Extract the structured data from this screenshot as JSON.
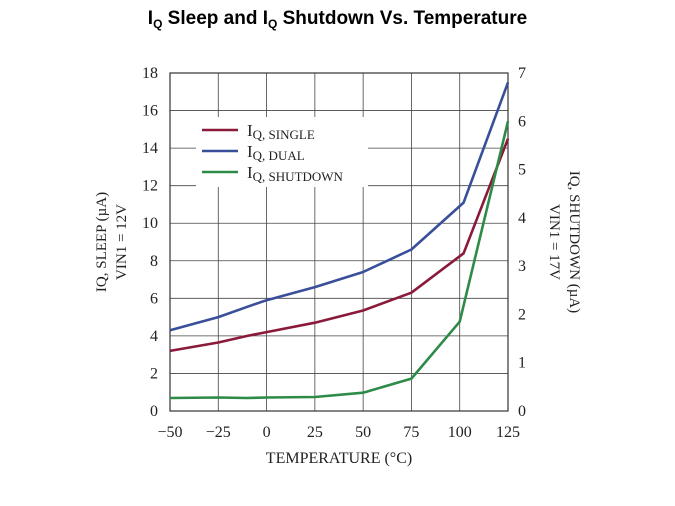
{
  "page": {
    "title_parts": [
      "I",
      "Q",
      " Sleep and I",
      "Q",
      " Shutdown Vs. Temperature"
    ]
  },
  "chart_data": {
    "type": "line",
    "x": [
      -50,
      -25,
      -10,
      0,
      25,
      50,
      75,
      100,
      125
    ],
    "xlabel": "TEMPERATURE (°C)",
    "xlim": [
      -50,
      125
    ],
    "xticks": [
      "−50",
      "−25",
      "0",
      "25",
      "50",
      "75",
      "100",
      "125"
    ],
    "xtick_values": [
      -50,
      -25,
      0,
      25,
      50,
      75,
      100,
      125
    ],
    "ylabel_left": [
      "IQ, SLEEP (µA)",
      "VIN1 = 12V"
    ],
    "ylim_left": [
      0,
      18
    ],
    "yticks_left": [
      0,
      2,
      4,
      6,
      8,
      10,
      12,
      14,
      16,
      18
    ],
    "ylabel_right": [
      "IQ, SHUTDOWN (µA)",
      "VIN1 = 17V"
    ],
    "ylim_right": [
      0,
      7
    ],
    "yticks_right": [
      0,
      1,
      2,
      3,
      4,
      5,
      6,
      7
    ],
    "grid": true,
    "legend_position": "top-left",
    "series": [
      {
        "name": "IQ, SINGLE",
        "legend_main": "I",
        "legend_sub": "Q, SINGLE",
        "axis": "left",
        "color": "#8b1a3a",
        "x": [
          -50,
          -25,
          -10,
          0,
          25,
          50,
          75,
          102,
          125
        ],
        "values": [
          3.2,
          3.65,
          4.0,
          4.2,
          4.7,
          5.35,
          6.3,
          8.4,
          14.5
        ]
      },
      {
        "name": "IQ, DUAL",
        "legend_main": "I",
        "legend_sub": "Q, DUAL",
        "axis": "left",
        "color": "#3a4f9a",
        "x": [
          -50,
          -25,
          -10,
          0,
          25,
          50,
          75,
          102,
          125
        ],
        "values": [
          4.3,
          5.0,
          5.55,
          5.9,
          6.6,
          7.4,
          8.6,
          11.1,
          17.5
        ]
      },
      {
        "name": "IQ, SHUTDOWN",
        "legend_main": "I",
        "legend_sub": "Q, SHUTDOWN",
        "axis": "right",
        "color": "#2e8b47",
        "x": [
          -50,
          -25,
          -10,
          0,
          25,
          50,
          75,
          100,
          125
        ],
        "values": [
          0.27,
          0.28,
          0.27,
          0.28,
          0.29,
          0.38,
          0.67,
          1.85,
          6.0
        ]
      }
    ]
  }
}
